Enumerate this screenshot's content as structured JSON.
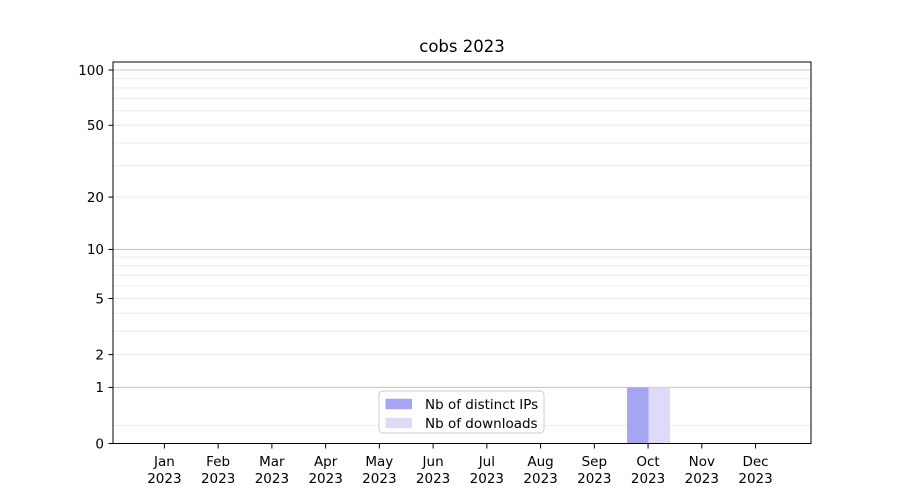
{
  "figure": {
    "background": "#ffffff",
    "axis_color": "#000000"
  },
  "chart_data": {
    "type": "bar",
    "title": "cobs 2023",
    "categories": [
      "Jan 2023",
      "Feb 2023",
      "Mar 2023",
      "Apr 2023",
      "May 2023",
      "Jun 2023",
      "Jul 2023",
      "Aug 2023",
      "Sep 2023",
      "Oct 2023",
      "Nov 2023",
      "Dec 2023"
    ],
    "x_tick_month_labels": [
      "Jan",
      "Feb",
      "Mar",
      "Apr",
      "May",
      "Jun",
      "Jul",
      "Aug",
      "Sep",
      "Oct",
      "Nov",
      "Dec"
    ],
    "x_tick_year_label": "2023",
    "series": [
      {
        "name": "Nb of distinct IPs",
        "color": "#a5a5f2",
        "values": [
          0,
          0,
          0,
          0,
          0,
          0,
          0,
          0,
          0,
          1,
          0,
          0
        ]
      },
      {
        "name": "Nb of downloads",
        "color": "#dcdcf8",
        "values": [
          0,
          0,
          0,
          0,
          0,
          0,
          0,
          0,
          0,
          1,
          0,
          0
        ]
      }
    ],
    "bar_layout": {
      "width_fraction": 0.4,
      "grouped": "side-by-side",
      "centered_on_tick": true
    },
    "y_axis": {
      "scale": "log1p",
      "ylim": [
        0,
        110
      ],
      "tick_values": [
        100,
        50,
        20,
        10,
        5,
        2,
        1,
        0
      ],
      "tick_labels": [
        "100",
        "50",
        "20",
        "10",
        "5",
        "2",
        "1",
        "0"
      ],
      "major_grid_values": [
        1,
        10,
        100
      ],
      "minor_grid_values": [
        0.25,
        2,
        3,
        4,
        5,
        6,
        7,
        8,
        9,
        20,
        30,
        40,
        50,
        60,
        70,
        80,
        90
      ],
      "major_grid_color": "#c9c9c9",
      "minor_grid_color": "#ececec",
      "grid": true
    },
    "legend": {
      "position": "lower center",
      "border_color": "#cccccc",
      "background": "#ffffff",
      "entries": [
        "Nb of distinct IPs",
        "Nb of downloads"
      ]
    }
  }
}
